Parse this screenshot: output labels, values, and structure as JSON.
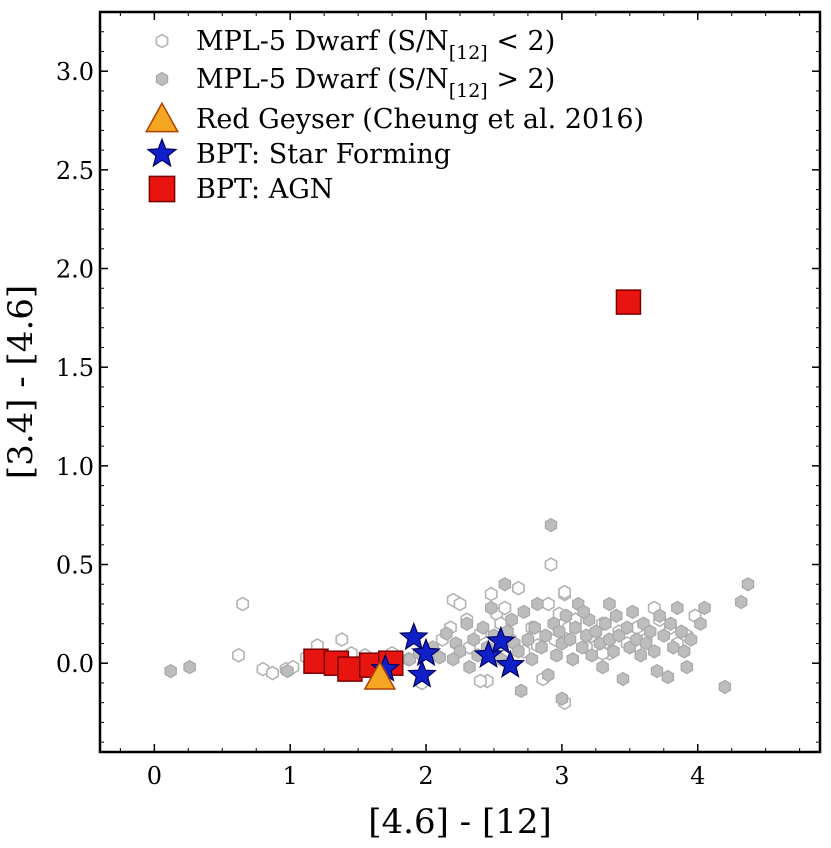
{
  "chart_data": {
    "type": "scatter",
    "xlabel": "[4.6] - [12]",
    "ylabel": "[3.4] - [4.6]",
    "xlim": [
      -0.4,
      4.9
    ],
    "ylim": [
      -0.45,
      3.3
    ],
    "xticks": [
      "0",
      "1",
      "2",
      "3",
      "4"
    ],
    "yticks": [
      "0.0",
      "0.5",
      "1.0",
      "1.5",
      "2.0",
      "2.5",
      "3.0"
    ],
    "grid": false,
    "legend_position": "top-left",
    "colors": {
      "dwarf_edge": "#b4b4b4",
      "dwarf_fill": "#bdbdbd",
      "geyser_fill": "#f5a623",
      "geyser_edge": "#b04000",
      "star_fill": "#1020c8",
      "star_edge": "#000060",
      "agn_fill": "#e8140f",
      "agn_edge": "#7a0000"
    },
    "legend": [
      {
        "label": "MPL-5 Dwarf (S/N",
        "sub": "[12]",
        "rest": " < 2)",
        "marker": "hexagon-open"
      },
      {
        "label": "MPL-5 Dwarf (S/N",
        "sub": "[12]",
        "rest": " > 2)",
        "marker": "hexagon-filled"
      },
      {
        "label": "Red Geyser (Cheung et al. 2016)",
        "marker": "triangle"
      },
      {
        "label": "BPT: Star Forming",
        "marker": "star"
      },
      {
        "label": "BPT: AGN",
        "marker": "square"
      }
    ],
    "series": [
      {
        "name": "MPL-5 Dwarf (S/N[12] < 2)",
        "marker": "hexagon-open",
        "points": [
          [
            0.65,
            0.3
          ],
          [
            0.62,
            0.04
          ],
          [
            0.8,
            -0.03
          ],
          [
            0.87,
            -0.05
          ],
          [
            0.97,
            -0.03
          ],
          [
            1.02,
            -0.02
          ],
          [
            1.12,
            0.03
          ],
          [
            1.2,
            0.09
          ],
          [
            1.38,
            0.12
          ],
          [
            1.45,
            0.05
          ],
          [
            1.55,
            0.04
          ],
          [
            1.75,
            0.05
          ],
          [
            1.87,
            0.02
          ],
          [
            1.97,
            -0.1
          ],
          [
            2.05,
            0.06
          ],
          [
            2.12,
            0.12
          ],
          [
            2.18,
            0.18
          ],
          [
            2.2,
            0.32
          ],
          [
            2.25,
            0.3
          ],
          [
            2.3,
            0.22
          ],
          [
            2.32,
            0.08
          ],
          [
            2.4,
            0.15
          ],
          [
            2.45,
            -0.09
          ],
          [
            2.48,
            0.35
          ],
          [
            2.52,
            0.25
          ],
          [
            2.55,
            0.2
          ],
          [
            2.58,
            0.28
          ],
          [
            2.62,
            0.12
          ],
          [
            2.68,
            0.38
          ],
          [
            2.72,
            0.06
          ],
          [
            2.78,
            0.18
          ],
          [
            2.82,
            0.09
          ],
          [
            2.86,
            -0.08
          ],
          [
            2.9,
            0.3
          ],
          [
            2.95,
            0.12
          ],
          [
            2.98,
            0.25
          ],
          [
            3.02,
            -0.2
          ],
          [
            3.05,
            0.18
          ],
          [
            3.1,
            0.22
          ],
          [
            3.18,
            0.08
          ],
          [
            3.22,
            0.14
          ],
          [
            3.3,
            0.2
          ],
          [
            3.35,
            0.05
          ],
          [
            3.42,
            0.16
          ],
          [
            3.48,
            0.1
          ],
          [
            3.55,
            0.18
          ],
          [
            3.62,
            0.12
          ],
          [
            3.68,
            0.28
          ],
          [
            3.72,
            0.22
          ],
          [
            3.8,
            0.18
          ],
          [
            3.85,
            0.1
          ],
          [
            3.92,
            0.14
          ],
          [
            3.98,
            0.24
          ],
          [
            3.02,
            0.35
          ],
          [
            2.92,
            0.5
          ],
          [
            3.02,
            0.36
          ],
          [
            2.55,
            0.09
          ],
          [
            2.4,
            -0.09
          ],
          [
            3.3,
            0.05
          ],
          [
            3.1,
            0.22
          ]
        ]
      },
      {
        "name": "MPL-5 Dwarf (S/N[12] > 2)",
        "marker": "hexagon-filled",
        "points": [
          [
            0.12,
            -0.04
          ],
          [
            0.26,
            -0.02
          ],
          [
            0.98,
            -0.04
          ],
          [
            1.88,
            0.02
          ],
          [
            1.95,
            0.05
          ],
          [
            2.05,
            0.08
          ],
          [
            2.1,
            0.03
          ],
          [
            2.15,
            0.15
          ],
          [
            2.22,
            0.1
          ],
          [
            2.25,
            0.06
          ],
          [
            2.3,
            0.2
          ],
          [
            2.35,
            0.12
          ],
          [
            2.38,
            0.04
          ],
          [
            2.42,
            0.18
          ],
          [
            2.45,
            0.08
          ],
          [
            2.5,
            0.14
          ],
          [
            2.55,
            0.02
          ],
          [
            2.58,
            0.4
          ],
          [
            2.6,
            0.16
          ],
          [
            2.63,
            0.22
          ],
          [
            2.65,
            0.1
          ],
          [
            2.68,
            0.06
          ],
          [
            2.7,
            -0.14
          ],
          [
            2.72,
            0.26
          ],
          [
            2.75,
            0.12
          ],
          [
            2.78,
            0.02
          ],
          [
            2.8,
            0.18
          ],
          [
            2.82,
            0.3
          ],
          [
            2.85,
            0.08
          ],
          [
            2.88,
            0.14
          ],
          [
            2.9,
            -0.06
          ],
          [
            2.92,
            0.7
          ],
          [
            2.94,
            0.2
          ],
          [
            2.96,
            0.04
          ],
          [
            2.98,
            0.16
          ],
          [
            3.0,
            -0.18
          ],
          [
            3.0,
            0.1
          ],
          [
            3.03,
            0.24
          ],
          [
            3.06,
            0.12
          ],
          [
            3.08,
            0.02
          ],
          [
            3.1,
            0.18
          ],
          [
            3.12,
            0.3
          ],
          [
            3.15,
            0.08
          ],
          [
            3.18,
            0.14
          ],
          [
            3.2,
            0.22
          ],
          [
            3.22,
            0.04
          ],
          [
            3.25,
            0.16
          ],
          [
            3.28,
            0.1
          ],
          [
            3.3,
            -0.02
          ],
          [
            3.32,
            0.2
          ],
          [
            3.35,
            0.12
          ],
          [
            3.38,
            0.06
          ],
          [
            3.4,
            0.24
          ],
          [
            3.42,
            0.14
          ],
          [
            3.45,
            -0.08
          ],
          [
            3.48,
            0.18
          ],
          [
            3.5,
            0.08
          ],
          [
            3.52,
            0.26
          ],
          [
            3.55,
            0.12
          ],
          [
            3.58,
            0.04
          ],
          [
            3.6,
            0.2
          ],
          [
            3.62,
            0.1
          ],
          [
            3.65,
            0.16
          ],
          [
            3.68,
            0.06
          ],
          [
            3.7,
            -0.04
          ],
          [
            3.72,
            0.24
          ],
          [
            3.75,
            0.14
          ],
          [
            3.78,
            -0.07
          ],
          [
            3.8,
            0.2
          ],
          [
            3.82,
            0.08
          ],
          [
            3.85,
            0.28
          ],
          [
            3.88,
            0.16
          ],
          [
            3.9,
            0.06
          ],
          [
            3.92,
            -0.02
          ],
          [
            3.95,
            0.12
          ],
          [
            4.02,
            0.2
          ],
          [
            4.05,
            0.28
          ],
          [
            4.2,
            -0.12
          ],
          [
            4.32,
            0.31
          ],
          [
            4.37,
            0.4
          ],
          [
            2.48,
            0.28
          ],
          [
            2.2,
            0.02
          ],
          [
            2.32,
            -0.02
          ],
          [
            3.35,
            0.3
          ],
          [
            3.16,
            0.26
          ]
        ]
      },
      {
        "name": "Red Geyser (Cheung et al. 2016)",
        "marker": "triangle",
        "points": [
          [
            1.66,
            -0.07
          ]
        ]
      },
      {
        "name": "BPT: Star Forming",
        "marker": "star",
        "points": [
          [
            1.91,
            0.13
          ],
          [
            2.0,
            0.05
          ],
          [
            1.97,
            -0.06
          ],
          [
            1.7,
            -0.03
          ],
          [
            2.46,
            0.04
          ],
          [
            2.55,
            0.11
          ],
          [
            2.62,
            -0.01
          ]
        ]
      },
      {
        "name": "BPT: AGN",
        "marker": "square",
        "points": [
          [
            1.19,
            0.01
          ],
          [
            1.34,
            0.0
          ],
          [
            1.44,
            -0.03
          ],
          [
            1.6,
            -0.01
          ],
          [
            1.74,
            0.0
          ],
          [
            3.49,
            1.83
          ]
        ]
      }
    ]
  }
}
